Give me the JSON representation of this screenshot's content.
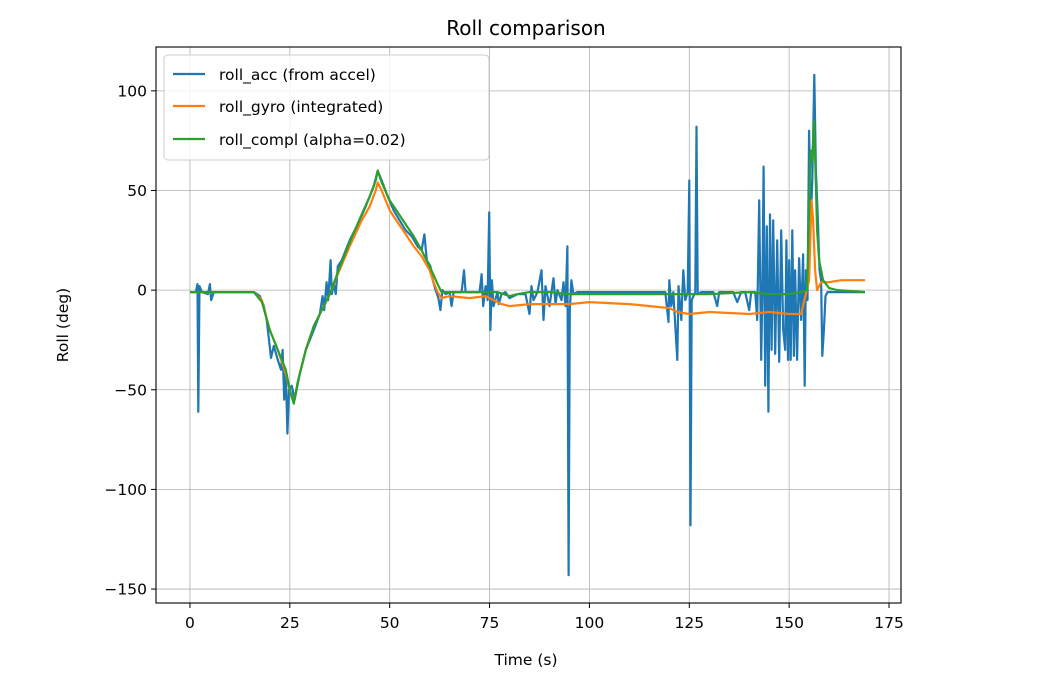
{
  "chart_data": {
    "type": "line",
    "title": "Roll comparison",
    "xlabel": "Time (s)",
    "ylabel": "Roll (deg)",
    "xlim": [
      -8.5,
      178
    ],
    "ylim": [
      -157,
      122
    ],
    "xticks": [
      0,
      25,
      50,
      75,
      100,
      125,
      150,
      175
    ],
    "yticks": [
      -150,
      -100,
      -50,
      0,
      50,
      100
    ],
    "xtick_labels": [
      "0",
      "25",
      "50",
      "75",
      "100",
      "125",
      "150",
      "175"
    ],
    "ytick_labels": [
      "−150",
      "−100",
      "−50",
      "0",
      "50",
      "100"
    ],
    "grid": true,
    "legend_position": "top-left",
    "series": [
      {
        "name": "roll_acc (from accel)",
        "color": "#1f77b4",
        "points": [
          [
            0,
            -1
          ],
          [
            1.5,
            -1
          ],
          [
            1.9,
            3
          ],
          [
            2.1,
            -61
          ],
          [
            2.4,
            2
          ],
          [
            3,
            -1
          ],
          [
            4.5,
            -2
          ],
          [
            5,
            3
          ],
          [
            5.3,
            -5
          ],
          [
            6,
            -1
          ],
          [
            16,
            -1
          ],
          [
            17.5,
            -3
          ],
          [
            18.5,
            -8
          ],
          [
            19.2,
            -15
          ],
          [
            19.8,
            -25
          ],
          [
            20.3,
            -34
          ],
          [
            21,
            -28
          ],
          [
            22,
            -35
          ],
          [
            22.8,
            -40
          ],
          [
            23.2,
            -30
          ],
          [
            23.6,
            -55
          ],
          [
            24,
            -40
          ],
          [
            24.4,
            -72
          ],
          [
            24.8,
            -50
          ],
          [
            25.5,
            -48
          ],
          [
            26.2,
            -55
          ],
          [
            27.5,
            -42
          ],
          [
            29,
            -30
          ],
          [
            31,
            -20
          ],
          [
            32.5,
            -12
          ],
          [
            33.2,
            -3
          ],
          [
            33.6,
            -10
          ],
          [
            34.2,
            4
          ],
          [
            34.6,
            -5
          ],
          [
            35.2,
            15
          ],
          [
            35.5,
            -2
          ],
          [
            36,
            3
          ],
          [
            36.5,
            -2
          ],
          [
            37,
            12
          ],
          [
            38,
            15
          ],
          [
            40,
            25
          ],
          [
            42,
            33
          ],
          [
            44,
            42
          ],
          [
            46,
            52
          ],
          [
            47,
            60
          ],
          [
            48,
            55
          ],
          [
            49.5,
            47
          ],
          [
            51,
            40
          ],
          [
            52.5,
            35
          ],
          [
            54,
            30
          ],
          [
            55.5,
            27
          ],
          [
            57,
            22
          ],
          [
            58,
            20
          ],
          [
            58.7,
            28
          ],
          [
            59.3,
            15
          ],
          [
            60.2,
            12
          ],
          [
            60.8,
            5
          ],
          [
            61.5,
            0
          ],
          [
            62.2,
            -4
          ],
          [
            62.7,
            -10
          ],
          [
            63.2,
            0
          ],
          [
            64,
            -2
          ],
          [
            65,
            -1
          ],
          [
            65.5,
            -8
          ],
          [
            66,
            -1
          ],
          [
            68,
            -1
          ],
          [
            68.6,
            10
          ],
          [
            69,
            -1
          ],
          [
            70,
            -1
          ],
          [
            72.5,
            -1
          ],
          [
            73,
            8
          ],
          [
            73.4,
            -8
          ],
          [
            74,
            2
          ],
          [
            74.5,
            -5
          ],
          [
            74.9,
            39
          ],
          [
            75.2,
            -20
          ],
          [
            75.6,
            5
          ],
          [
            76,
            -8
          ],
          [
            77,
            -1
          ],
          [
            77.3,
            -7
          ],
          [
            78,
            -2
          ],
          [
            79,
            -1
          ],
          [
            80,
            -4
          ],
          [
            82,
            -2
          ],
          [
            84,
            -2
          ],
          [
            85,
            -12
          ],
          [
            85.5,
            2
          ],
          [
            86,
            -5
          ],
          [
            87,
            -1
          ],
          [
            88,
            10
          ],
          [
            88.5,
            -15
          ],
          [
            89,
            2
          ],
          [
            90,
            -8
          ],
          [
            91,
            6
          ],
          [
            91.5,
            -7
          ],
          [
            92,
            0
          ],
          [
            93,
            -5
          ],
          [
            93.5,
            4
          ],
          [
            94,
            -8
          ],
          [
            94.5,
            22
          ],
          [
            94.8,
            -143
          ],
          [
            95.1,
            -10
          ],
          [
            95.5,
            5
          ],
          [
            96,
            -2
          ],
          [
            97,
            -1
          ],
          [
            110,
            -1
          ],
          [
            119,
            -1
          ],
          [
            119.8,
            -16
          ],
          [
            120,
            5
          ],
          [
            120.5,
            -8
          ],
          [
            121,
            -1
          ],
          [
            122,
            -35
          ],
          [
            122.3,
            2
          ],
          [
            123,
            -15
          ],
          [
            123.5,
            10
          ],
          [
            124,
            -5
          ],
          [
            124.6,
            -1
          ],
          [
            125,
            55
          ],
          [
            125.3,
            -118
          ],
          [
            125.6,
            -5
          ],
          [
            126.5,
            -1
          ],
          [
            126.8,
            82
          ],
          [
            127.1,
            -2
          ],
          [
            128,
            -1
          ],
          [
            131,
            -1
          ],
          [
            132,
            -8
          ],
          [
            132.5,
            -1
          ],
          [
            136,
            -1
          ],
          [
            137,
            -6
          ],
          [
            138,
            -1
          ],
          [
            139,
            -1
          ],
          [
            140,
            -10
          ],
          [
            140.5,
            -1
          ],
          [
            141.5,
            -1
          ],
          [
            142,
            -15
          ],
          [
            142.5,
            45
          ],
          [
            143,
            -35
          ],
          [
            143.3,
            0
          ],
          [
            143.6,
            62
          ],
          [
            144,
            -48
          ],
          [
            144.4,
            32
          ],
          [
            144.8,
            -61
          ],
          [
            145.2,
            38
          ],
          [
            145.6,
            -30
          ],
          [
            146,
            35
          ],
          [
            146.5,
            -32
          ],
          [
            147,
            25
          ],
          [
            147.5,
            -36
          ],
          [
            148,
            30
          ],
          [
            148.5,
            -20
          ],
          [
            149,
            -30
          ],
          [
            149.3,
            25
          ],
          [
            149.7,
            -35
          ],
          [
            150,
            15
          ],
          [
            150.4,
            -35
          ],
          [
            150.8,
            30
          ],
          [
            151.2,
            -33
          ],
          [
            151.5,
            10
          ],
          [
            152,
            -35
          ],
          [
            152.5,
            16
          ],
          [
            153,
            -15
          ],
          [
            153.5,
            18
          ],
          [
            153.9,
            -48
          ],
          [
            154.2,
            10
          ],
          [
            154.6,
            -5
          ],
          [
            155,
            80
          ],
          [
            155.4,
            35
          ],
          [
            155.8,
            55
          ],
          [
            156.3,
            108
          ],
          [
            156.7,
            60
          ],
          [
            157.2,
            35
          ],
          [
            157.6,
            10
          ],
          [
            158,
            5
          ],
          [
            158.3,
            -33
          ],
          [
            158.7,
            -20
          ],
          [
            159.1,
            -3
          ],
          [
            159.6,
            -1
          ],
          [
            160.3,
            -1
          ],
          [
            162,
            -1
          ],
          [
            169,
            -1
          ]
        ]
      },
      {
        "name": "roll_gyro (integrated)",
        "color": "#ff7f0e",
        "points": [
          [
            0,
            -1
          ],
          [
            16,
            -1
          ],
          [
            18,
            -5
          ],
          [
            20,
            -20
          ],
          [
            22,
            -30
          ],
          [
            24,
            -42
          ],
          [
            25.5,
            -54
          ],
          [
            26,
            -56
          ],
          [
            27,
            -46
          ],
          [
            29,
            -30
          ],
          [
            31,
            -18
          ],
          [
            33,
            -10
          ],
          [
            35,
            -2
          ],
          [
            37,
            8
          ],
          [
            40,
            22
          ],
          [
            43,
            35
          ],
          [
            45,
            42
          ],
          [
            46.5,
            50
          ],
          [
            47,
            54
          ],
          [
            48,
            50
          ],
          [
            50,
            40
          ],
          [
            52,
            34
          ],
          [
            54,
            28
          ],
          [
            56,
            22
          ],
          [
            58,
            17
          ],
          [
            60,
            10
          ],
          [
            61,
            4
          ],
          [
            62,
            -1
          ],
          [
            63,
            -4
          ],
          [
            65,
            -3
          ],
          [
            70,
            -4
          ],
          [
            74,
            -3
          ],
          [
            76,
            -5
          ],
          [
            78,
            -7
          ],
          [
            80,
            -8
          ],
          [
            85,
            -7
          ],
          [
            90,
            -7
          ],
          [
            95,
            -7
          ],
          [
            100,
            -6
          ],
          [
            110,
            -7
          ],
          [
            120,
            -9
          ],
          [
            122,
            -11
          ],
          [
            125,
            -12
          ],
          [
            130,
            -11
          ],
          [
            140,
            -12
          ],
          [
            145,
            -11
          ],
          [
            150,
            -12
          ],
          [
            153,
            -12
          ],
          [
            155,
            5
          ],
          [
            155.6,
            45
          ],
          [
            156,
            35
          ],
          [
            156.5,
            10
          ],
          [
            157,
            0
          ],
          [
            158,
            4
          ],
          [
            160,
            4
          ],
          [
            163,
            5
          ],
          [
            169,
            5
          ]
        ]
      },
      {
        "name": "roll_compl (alpha=0.02)",
        "color": "#2ca02c",
        "points": [
          [
            0,
            -1
          ],
          [
            16,
            -1
          ],
          [
            18,
            -6
          ],
          [
            20,
            -20
          ],
          [
            22,
            -30
          ],
          [
            24,
            -40
          ],
          [
            25,
            -50
          ],
          [
            26,
            -57
          ],
          [
            27,
            -46
          ],
          [
            29,
            -30
          ],
          [
            31,
            -18
          ],
          [
            33,
            -10
          ],
          [
            35,
            -2
          ],
          [
            37,
            9
          ],
          [
            40,
            24
          ],
          [
            43,
            38
          ],
          [
            45,
            47
          ],
          [
            46.5,
            55
          ],
          [
            47,
            60
          ],
          [
            48,
            54
          ],
          [
            50,
            45
          ],
          [
            52,
            39
          ],
          [
            54,
            33
          ],
          [
            56,
            27
          ],
          [
            58,
            20
          ],
          [
            60,
            12
          ],
          [
            62,
            3
          ],
          [
            63,
            -1
          ],
          [
            65,
            -1
          ],
          [
            70,
            -1
          ],
          [
            75,
            -1
          ],
          [
            77,
            -1
          ],
          [
            80,
            -3
          ],
          [
            82,
            -2
          ],
          [
            85,
            -1
          ],
          [
            90,
            -1
          ],
          [
            95,
            -2
          ],
          [
            100,
            -2
          ],
          [
            110,
            -2
          ],
          [
            120,
            -2
          ],
          [
            125,
            -2
          ],
          [
            130,
            -2
          ],
          [
            140,
            -1
          ],
          [
            145,
            -2
          ],
          [
            150,
            -2
          ],
          [
            153,
            -1
          ],
          [
            154.5,
            0
          ],
          [
            155,
            40
          ],
          [
            155.4,
            70
          ],
          [
            155.8,
            65
          ],
          [
            156.2,
            85
          ],
          [
            156.6,
            60
          ],
          [
            157,
            30
          ],
          [
            157.5,
            15
          ],
          [
            158.5,
            5
          ],
          [
            160,
            1
          ],
          [
            162,
            0
          ],
          [
            169,
            -1
          ]
        ]
      }
    ]
  }
}
